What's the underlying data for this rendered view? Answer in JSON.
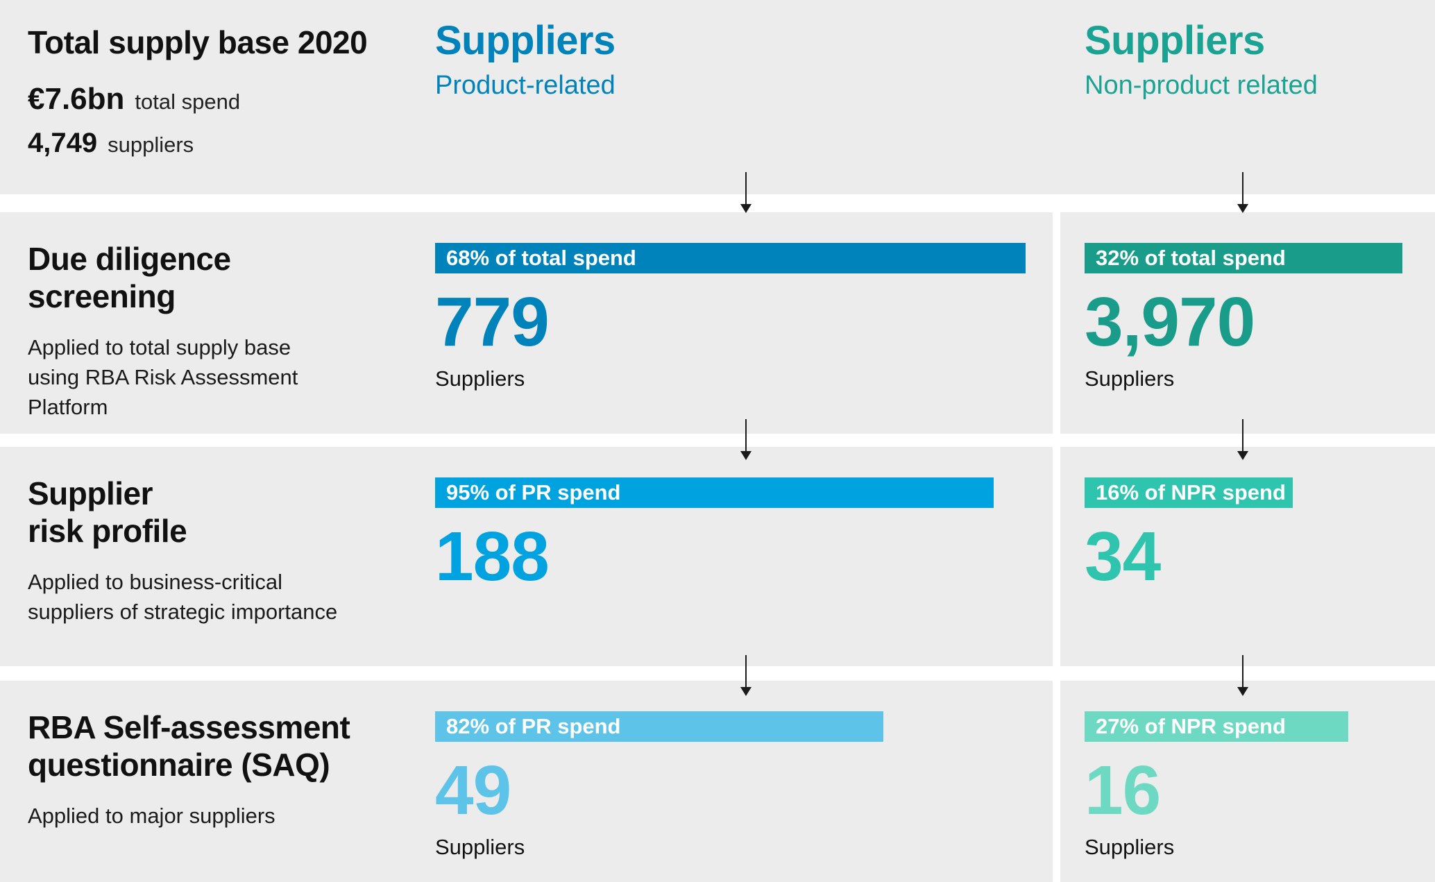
{
  "summary": {
    "title": "Total supply base 2020",
    "total_spend_value": "€7.6bn",
    "total_spend_label": "total spend",
    "supplier_count_value": "4,749",
    "supplier_count_label": "suppliers"
  },
  "columns": {
    "product": {
      "title": "Suppliers",
      "subtitle": "Product-related",
      "color": "#0083ba"
    },
    "non_product": {
      "title": "Suppliers",
      "subtitle": "Non-product related",
      "color": "#1aa392"
    }
  },
  "stages": [
    {
      "title": "Due diligence\nscreening",
      "description": "Applied to total supply base using RBA Risk Assessment Platform",
      "product": {
        "bar_label": "68% of total spend",
        "bar_color": "#0083ba",
        "bar_width": "95.6%",
        "value": "779",
        "unit": "Suppliers"
      },
      "non_product": {
        "bar_label": "32% of total spend",
        "bar_color": "#1a9c8b",
        "bar_width": "90.6%",
        "value": "3,970",
        "unit": "Suppliers"
      }
    },
    {
      "title": "Supplier\nrisk profile",
      "description": "Applied to business-critical suppliers of strategic importance",
      "product": {
        "bar_label": "95% of PR spend",
        "bar_color": "#00a3e0",
        "bar_width": "90.4%",
        "value": "188",
        "unit": ""
      },
      "non_product": {
        "bar_label": "16% of NPR spend",
        "bar_color": "#2fc4ad",
        "bar_width": "59.5%",
        "value": "34",
        "unit": ""
      }
    },
    {
      "title": "RBA Self-assessment\nquestionnaire (SAQ)",
      "description": "Applied to major suppliers",
      "product": {
        "bar_label": "82% of PR spend",
        "bar_color": "#5ec3e8",
        "bar_width": "72.6%",
        "value": "49",
        "unit": "Suppliers"
      },
      "non_product": {
        "bar_label": "27% of NPR spend",
        "bar_color": "#6ed9c3",
        "bar_width": "75.2%",
        "value": "16",
        "unit": "Suppliers"
      }
    }
  ],
  "chart_data": {
    "type": "bar",
    "title": "Total supply base 2020",
    "totals": {
      "total_spend": "€7.6bn",
      "total_suppliers": 4749
    },
    "series": [
      {
        "name": "Product-related suppliers",
        "stages": [
          {
            "stage": "Due diligence screening",
            "suppliers": 779,
            "spend_share_pct": 68,
            "spend_share_of": "total spend"
          },
          {
            "stage": "Supplier risk profile",
            "suppliers": 188,
            "spend_share_pct": 95,
            "spend_share_of": "PR spend"
          },
          {
            "stage": "RBA Self-assessment questionnaire (SAQ)",
            "suppliers": 49,
            "spend_share_pct": 82,
            "spend_share_of": "PR spend"
          }
        ]
      },
      {
        "name": "Non-product related suppliers",
        "stages": [
          {
            "stage": "Due diligence screening",
            "suppliers": 3970,
            "spend_share_pct": 32,
            "spend_share_of": "total spend"
          },
          {
            "stage": "Supplier risk profile",
            "suppliers": 34,
            "spend_share_pct": 16,
            "spend_share_of": "NPR spend"
          },
          {
            "stage": "RBA Self-assessment questionnaire (SAQ)",
            "suppliers": 16,
            "spend_share_pct": 27,
            "spend_share_of": "NPR spend"
          }
        ]
      }
    ]
  }
}
